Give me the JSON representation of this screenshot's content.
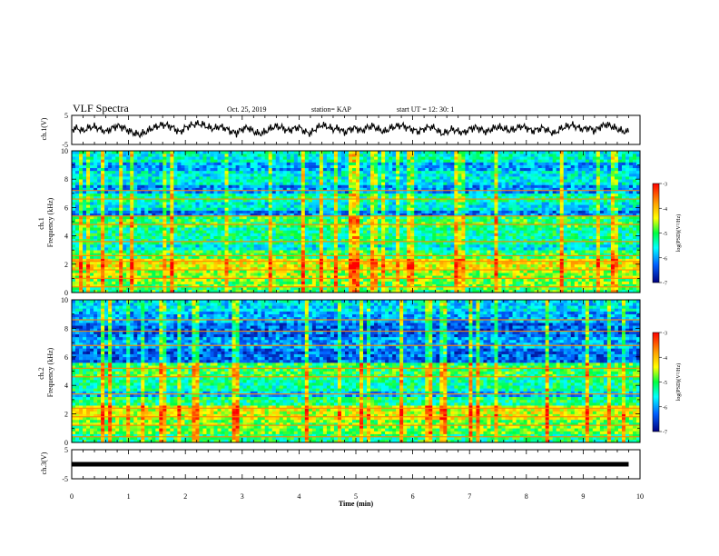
{
  "header": {
    "title": "VLF Spectra",
    "date": "Oct. 25, 2019",
    "station": "station= KAP",
    "start_ut": "start  UT =   12: 30: 1"
  },
  "chart_data": [
    {
      "type": "line",
      "id": "ch1_waveform",
      "ylabel": "ch.1(V)",
      "ylim": [
        -5,
        5
      ],
      "yticks": [
        "5",
        "-5"
      ],
      "xlim": [
        0,
        10
      ],
      "x": [
        0.0,
        0.1,
        0.2,
        0.3,
        0.4,
        0.5,
        0.6,
        0.7,
        0.8,
        0.9,
        1.0,
        1.1,
        1.2,
        1.3,
        1.4,
        1.5,
        1.6,
        1.7,
        1.8,
        1.9,
        2.0,
        2.1,
        2.2,
        2.3,
        2.4,
        2.5,
        2.6,
        2.7,
        2.8,
        2.9,
        3.0,
        3.1,
        3.2,
        3.3,
        3.4,
        3.5,
        3.6,
        3.7,
        3.8,
        3.9,
        4.0,
        4.1,
        4.2,
        4.3,
        4.4,
        4.5,
        4.6,
        4.7,
        4.8,
        4.9,
        5.0,
        5.1,
        5.2,
        5.3,
        5.4,
        5.5,
        5.6,
        5.7,
        5.8,
        5.9,
        6.0,
        6.1,
        6.2,
        6.3,
        6.4,
        6.5,
        6.6,
        6.7,
        6.8,
        6.9,
        7.0,
        7.1,
        7.2,
        7.3,
        7.4,
        7.5,
        7.6,
        7.7,
        7.8,
        7.9,
        8.0,
        8.1,
        8.2,
        8.3,
        8.4,
        8.5,
        8.6,
        8.7,
        8.8,
        8.9,
        9.0,
        9.1,
        9.2,
        9.3,
        9.4,
        9.5,
        9.6,
        9.7,
        9.8
      ],
      "y": [
        0.2,
        0.6,
        -0.4,
        0.8,
        1.1,
        0.3,
        -0.6,
        0.5,
        1.4,
        0.9,
        -0.3,
        -1.2,
        -1.6,
        -0.8,
        0.4,
        1.2,
        1.8,
        1.5,
        0.6,
        -0.9,
        0.8,
        1.6,
        2.1,
        1.9,
        0.9,
        0.4,
        1.2,
        0.6,
        -0.5,
        -1.1,
        0.3,
        0.9,
        -0.6,
        -1.4,
        -0.7,
        0.5,
        1.3,
        0.8,
        -0.3,
        0.4,
        1.0,
        -0.6,
        -1.2,
        0.5,
        1.7,
        1.1,
        0.2,
        0.6,
        -0.9,
        0.3,
        0.7,
        -0.4,
        0.9,
        1.3,
        0.2,
        -0.7,
        0.5,
        1.2,
        1.6,
        0.8,
        0.1,
        -0.6,
        0.4,
        1.1,
        0.5,
        -1.3,
        -0.8,
        0.3,
        -0.5,
        -1.0,
        0.3,
        0.9,
        0.2,
        -0.7,
        0.4,
        1.0,
        0.5,
        -0.2,
        0.3,
        1.3,
        0.8,
        -0.4,
        0.2,
        0.7,
        -0.5,
        -1.2,
        0.4,
        1.1,
        1.7,
        0.9,
        0.2,
        0.8,
        -0.3,
        1.1,
        1.9,
        1.2,
        0.3,
        -0.5,
        -0.8
      ],
      "color": "#000000"
    },
    {
      "type": "heatmap",
      "id": "ch1_spectrogram",
      "ylabel": "ch.1\nFrequency (kHz)",
      "ylim": [
        0,
        10
      ],
      "yticks": [
        "0",
        "2",
        "4",
        "6",
        "8",
        "10"
      ],
      "xlim": [
        0,
        10
      ],
      "value_label": "log(PSD)(V²/Hz)",
      "value_range": [
        -7,
        -3
      ],
      "bands_khz": [
        [
          0.0,
          0.4,
          -5.0
        ],
        [
          0.4,
          1.0,
          -4.8
        ],
        [
          1.0,
          1.6,
          -4.6
        ],
        [
          1.6,
          2.4,
          -4.3
        ],
        [
          2.4,
          3.0,
          -5.0
        ],
        [
          3.0,
          3.4,
          -5.6
        ],
        [
          3.4,
          4.6,
          -5.3
        ],
        [
          4.6,
          5.4,
          -5.0
        ],
        [
          5.4,
          5.8,
          -6.2
        ],
        [
          5.8,
          6.4,
          -5.6
        ],
        [
          6.4,
          7.0,
          -5.3
        ],
        [
          7.0,
          7.6,
          -6.1
        ],
        [
          7.6,
          8.6,
          -5.6
        ],
        [
          8.6,
          9.2,
          -6.0
        ],
        [
          9.2,
          10.0,
          -5.5
        ]
      ],
      "hum_lines_khz": [
        0.4,
        1.0,
        1.6,
        2.2,
        2.6,
        3.6,
        4.8,
        5.4,
        6.6,
        7.2
      ]
    },
    {
      "type": "heatmap",
      "id": "ch2_spectrogram",
      "ylabel": "ch.2\nFrequency (kHz)",
      "ylim": [
        0,
        10
      ],
      "yticks": [
        "0",
        "2",
        "4",
        "6",
        "8",
        "10"
      ],
      "xlim": [
        0,
        10
      ],
      "value_label": "log(PSD)(V²/Hz)",
      "value_range": [
        -7,
        -3
      ],
      "bands_khz": [
        [
          0.0,
          0.6,
          -5.2
        ],
        [
          0.6,
          1.6,
          -4.8
        ],
        [
          1.6,
          2.6,
          -4.4
        ],
        [
          2.6,
          3.2,
          -5.2
        ],
        [
          3.2,
          3.6,
          -5.9
        ],
        [
          3.6,
          4.6,
          -5.3
        ],
        [
          4.6,
          5.6,
          -5.0
        ],
        [
          5.6,
          6.6,
          -6.3
        ],
        [
          6.6,
          7.4,
          -6.0
        ],
        [
          7.4,
          8.4,
          -6.3
        ],
        [
          8.4,
          9.2,
          -6.0
        ],
        [
          9.2,
          10.0,
          -5.7
        ]
      ],
      "hum_lines_khz": [
        0.4,
        1.2,
        1.8,
        2.4,
        3.4,
        4.6,
        5.2,
        6.8,
        7.8,
        8.6
      ]
    },
    {
      "type": "line",
      "id": "ch3_waveform",
      "ylabel": "ch.3(V)",
      "ylim": [
        -5,
        5
      ],
      "yticks": [
        "5",
        "-5"
      ],
      "xlim": [
        0,
        10
      ],
      "x": [
        0,
        9.8
      ],
      "y": [
        0,
        0
      ],
      "color": "#000000"
    }
  ],
  "x_axis": {
    "label": "Time (min)",
    "ticks": [
      "0",
      "1",
      "2",
      "3",
      "4",
      "5",
      "6",
      "7",
      "8",
      "9",
      "10"
    ]
  },
  "colorbar": {
    "ticks": [
      "-3",
      "-4",
      "-5",
      "-6",
      "-7"
    ],
    "label": "log(PSD)(V²/Hz)",
    "colors": [
      "#ff0000",
      "#ffa000",
      "#ffff00",
      "#00ff40",
      "#00ffff",
      "#0060ff",
      "#000080"
    ]
  }
}
